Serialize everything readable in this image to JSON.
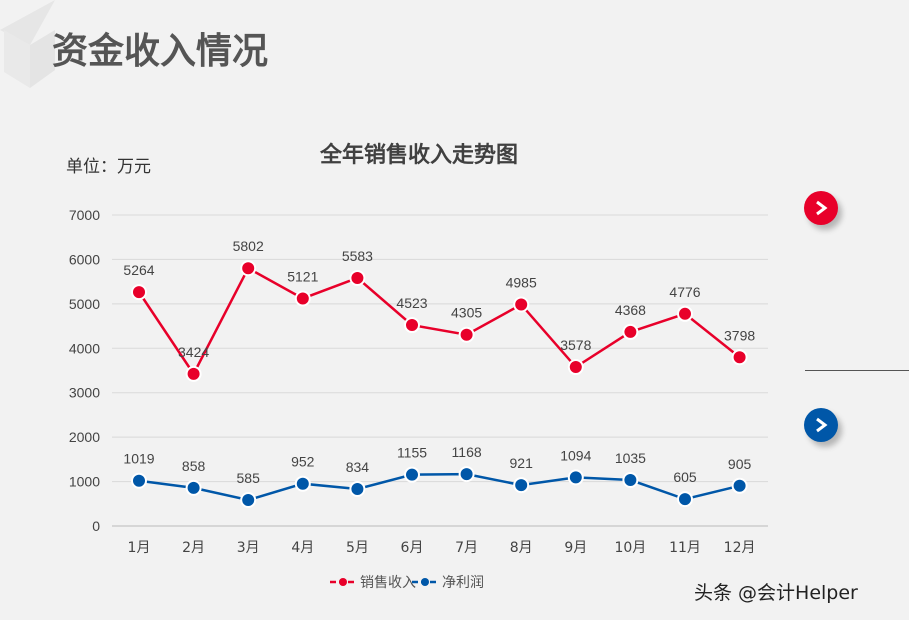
{
  "page": {
    "title": "资金收入情况",
    "unit": "单位：万元",
    "watermark": "头条 @会计Helper"
  },
  "buttons": [
    {
      "icon": "chevron-right-icon",
      "color": "#e8002a"
    },
    {
      "icon": "chevron-right-icon",
      "color": "#0057a8"
    }
  ],
  "chart_data": {
    "type": "line",
    "title": "全年销售收入走势图",
    "categories": [
      "1月",
      "2月",
      "3月",
      "4月",
      "5月",
      "6月",
      "7月",
      "8月",
      "9月",
      "10月",
      "11月",
      "12月"
    ],
    "ylim": [
      0,
      7000
    ],
    "yticks": [
      0,
      1000,
      2000,
      3000,
      4000,
      5000,
      6000,
      7000
    ],
    "grid": true,
    "legend": "bottom",
    "series": [
      {
        "name": "销售收入",
        "color": "#e8002a",
        "values": [
          5264,
          3424,
          5802,
          5121,
          5583,
          4523,
          4305,
          4985,
          3578,
          4368,
          4776,
          3798
        ]
      },
      {
        "name": "净利润",
        "color": "#0057a8",
        "values": [
          1019,
          858,
          585,
          952,
          834,
          1155,
          1168,
          921,
          1094,
          1035,
          605,
          905
        ]
      }
    ]
  }
}
